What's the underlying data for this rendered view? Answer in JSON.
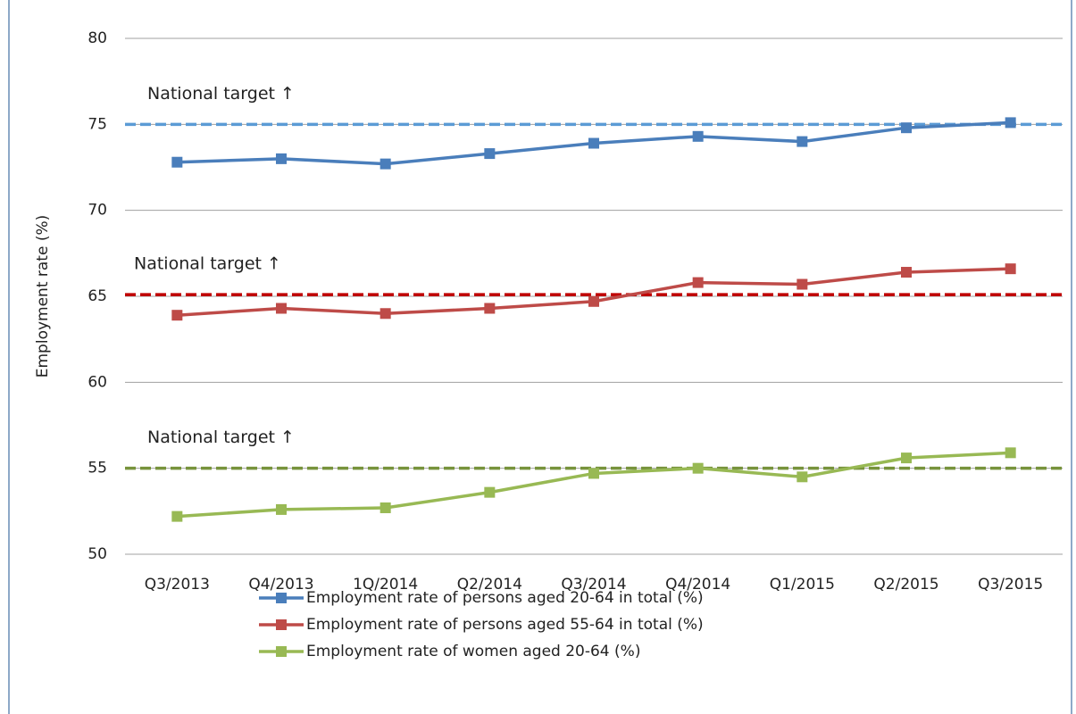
{
  "chart_data": {
    "type": "line",
    "y_label": "Employment rate (%)",
    "categories": [
      "Q3/2013",
      "Q4/2013",
      "1Q/2014",
      "Q2/2014",
      "Q3/2014",
      "Q4/2014",
      "Q1/2015",
      "Q2/2015",
      "Q3/2015"
    ],
    "series": [
      {
        "name": "Employment rate of persons aged 20-64 in total (%)",
        "color": "#4a7ebb",
        "values": [
          72.8,
          73.0,
          72.7,
          73.3,
          73.9,
          74.3,
          74.0,
          74.8,
          75.1
        ]
      },
      {
        "name": "Employment rate of persons aged 55-64 in total (%)",
        "color": "#be4b48",
        "values": [
          63.9,
          64.3,
          64.0,
          64.3,
          64.7,
          65.8,
          65.7,
          66.4,
          66.6
        ]
      },
      {
        "name": "Employment rate of women aged 20-64 (%)",
        "color": "#98b954",
        "values": [
          52.2,
          52.6,
          52.7,
          53.6,
          54.7,
          55.0,
          54.5,
          55.6,
          55.9
        ]
      }
    ],
    "targets": [
      {
        "label": "National target ↑",
        "value": 75,
        "color": "#5b9bd5",
        "label_color": "#2e5f9e"
      },
      {
        "label": "National target ↑",
        "value": 65.1,
        "color": "#c00000",
        "label_color": "#c00000"
      },
      {
        "label": "National target ↑",
        "value": 55,
        "color": "#77933c",
        "label_color": "#77933c"
      }
    ],
    "ylim": [
      50,
      80
    ],
    "yticks": [
      50,
      55,
      60,
      65,
      70,
      75,
      80
    ],
    "grid": true
  }
}
